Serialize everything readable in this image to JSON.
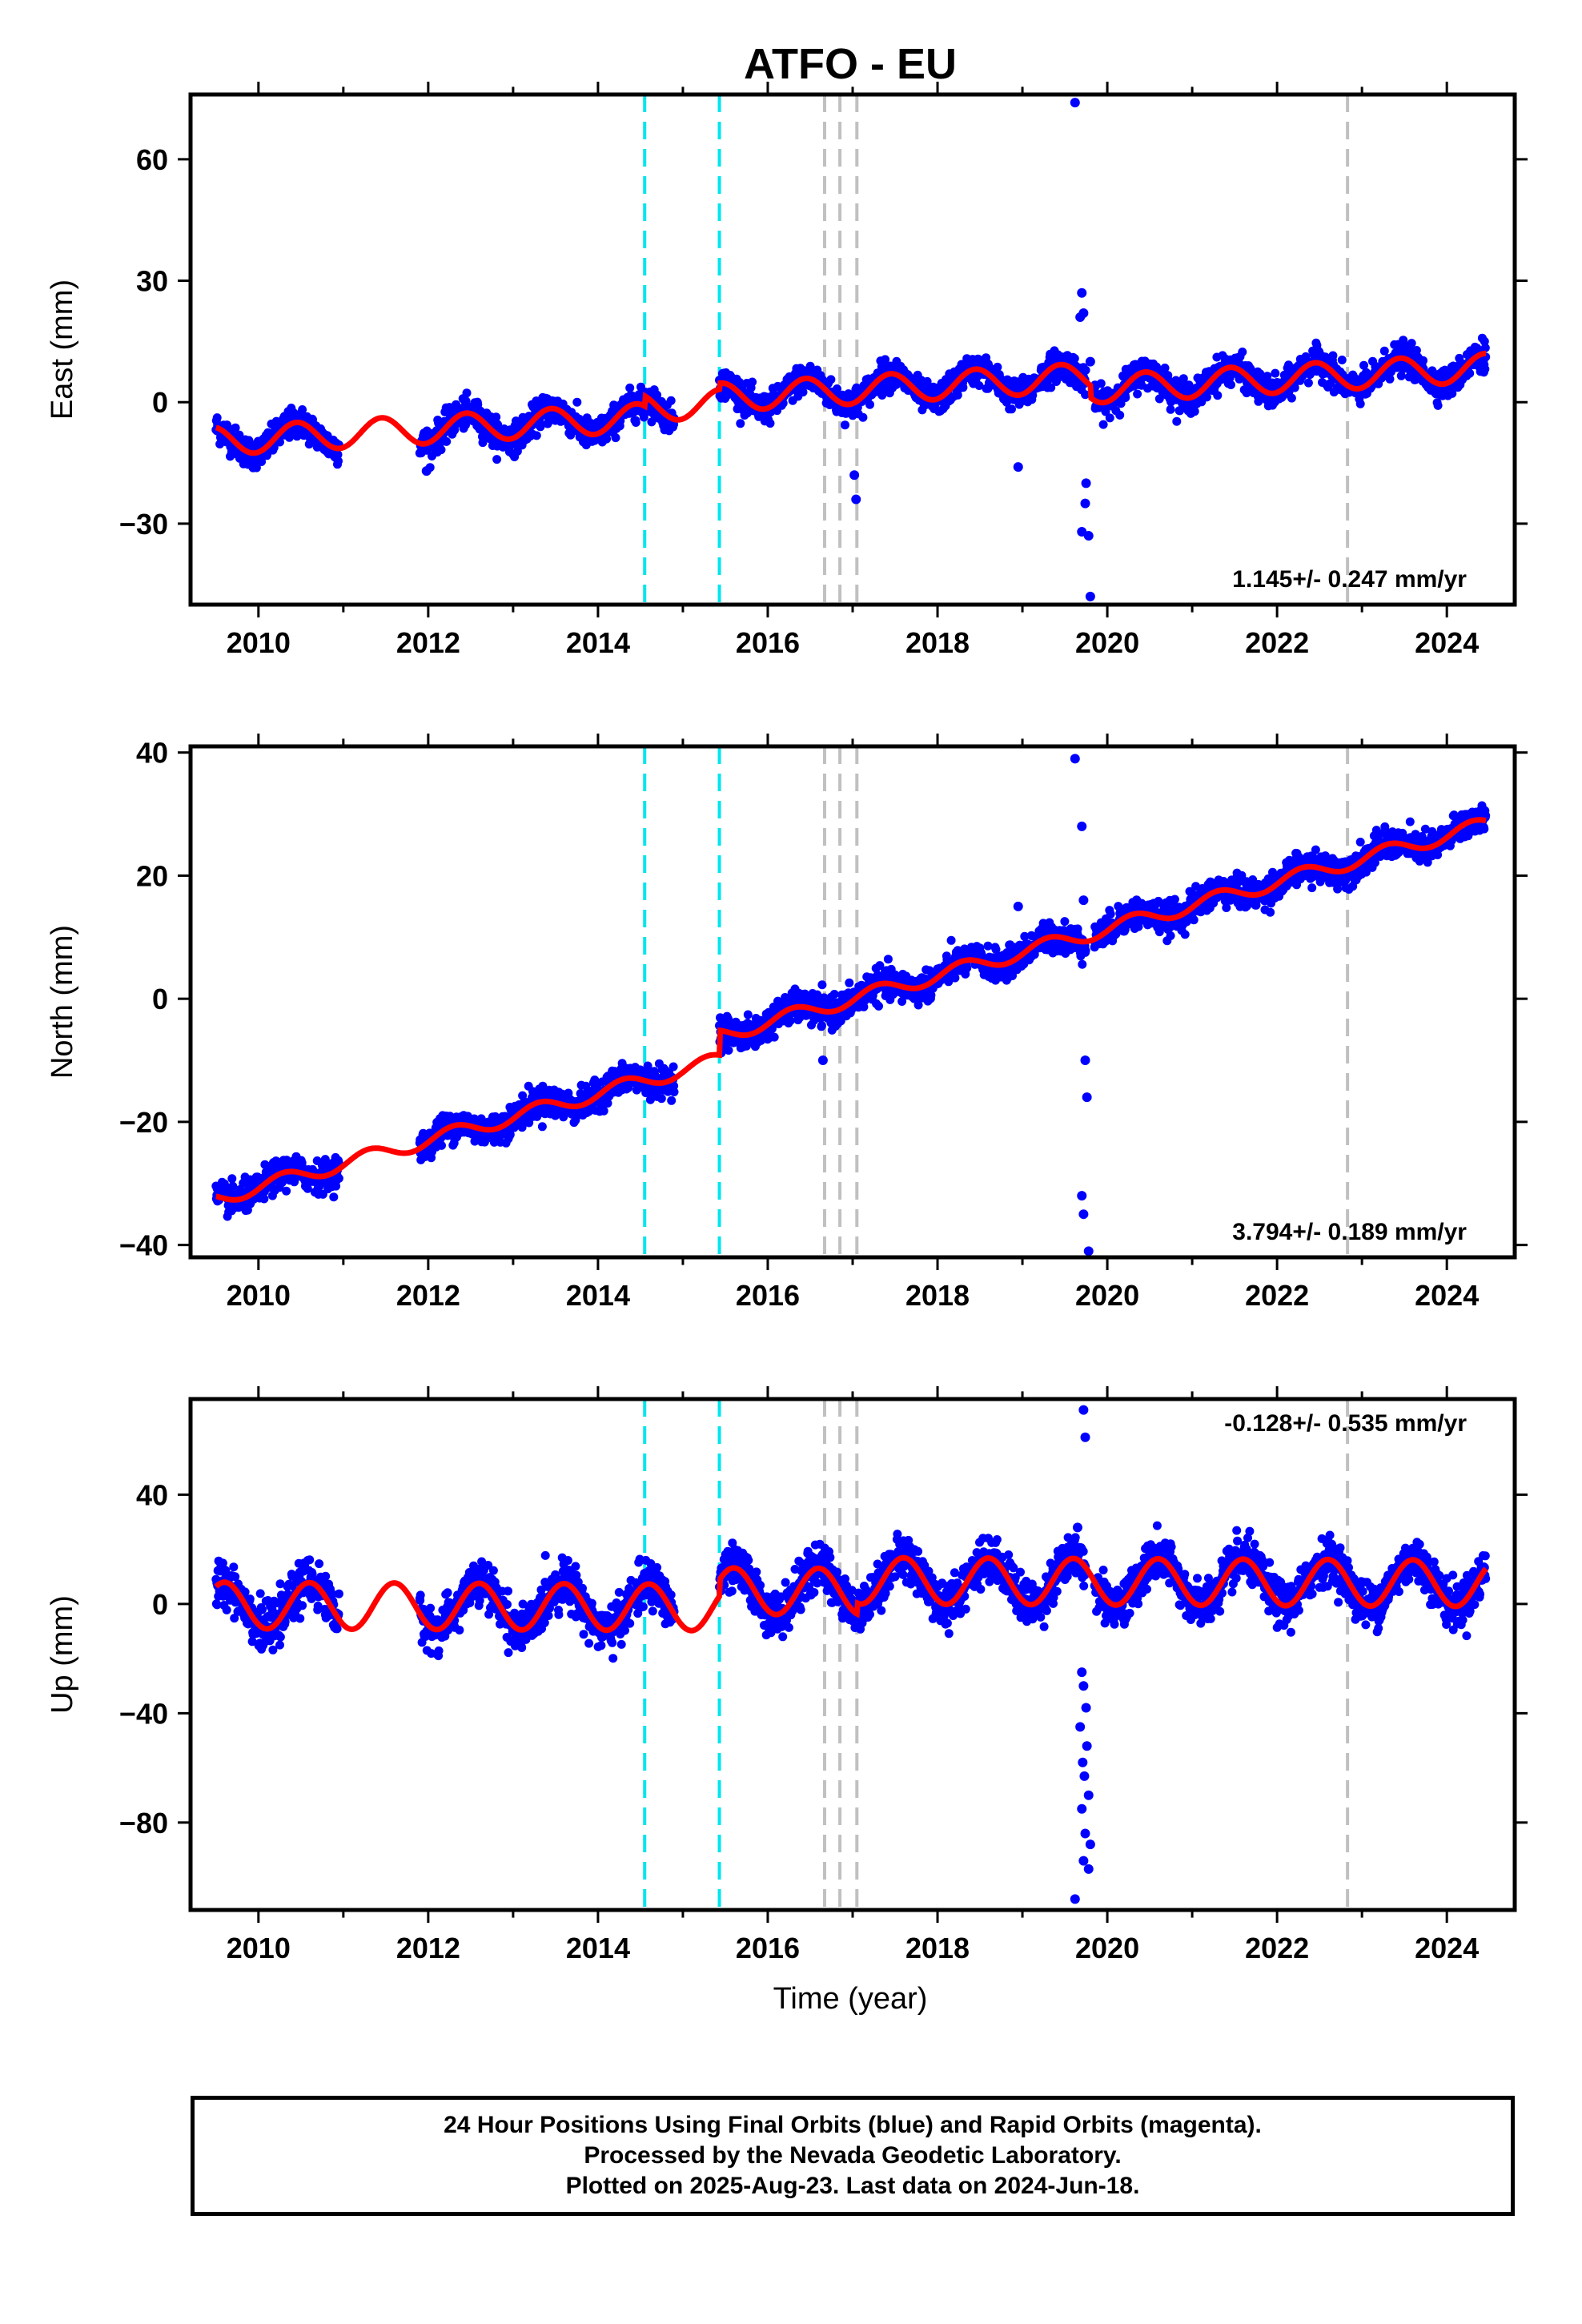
{
  "chart_data": {
    "type": "scatter",
    "title": "ATFO - EU",
    "xlabel": "Time (year)",
    "xlim": [
      2009.2,
      2024.8
    ],
    "xticks": [
      2010,
      2012,
      2014,
      2016,
      2018,
      2020,
      2022,
      2024
    ],
    "colors": {
      "points": "#0000ff",
      "model": "#ff0000",
      "equipment_change": "#00e5ee",
      "earthquake": "#c0c0c0"
    },
    "vertical_lines": {
      "cyan": [
        2014.55,
        2015.43
      ],
      "gray": [
        2016.67,
        2016.85,
        2017.05,
        2022.83
      ]
    },
    "data_coverage": [
      [
        2009.5,
        2010.95
      ],
      [
        2011.9,
        2014.9
      ],
      [
        2015.43,
        2018.35
      ],
      [
        2018.4,
        2019.75
      ],
      [
        2019.85,
        2024.46
      ]
    ],
    "panels": [
      {
        "id": "east",
        "ylabel": "East (mm)",
        "ylim": [
          -50,
          76
        ],
        "yticks": [
          60,
          30,
          0,
          -30
        ],
        "ytick_labels": [
          "60",
          "30",
          "0",
          "−30"
        ],
        "rate_text": "1.145+/- 0.247 mm/yr",
        "rate_position": "bottom-right",
        "trend": {
          "ref_year": 2017,
          "intercept": -1.0,
          "slope": 1.145,
          "amplitude": 3.5,
          "phase": 2016.45
        },
        "offsets": [
          {
            "year": 2014.55,
            "delta": 2.5
          },
          {
            "year": 2015.43,
            "delta": 1.5
          },
          {
            "year": 2019.8,
            "delta": -3.0
          }
        ],
        "scatter_sd": 1.8,
        "outliers": [
          {
            "x": 2019.62,
            "y": 74
          },
          {
            "x": 2019.7,
            "y": 27
          },
          {
            "x": 2019.72,
            "y": 22
          },
          {
            "x": 2019.68,
            "y": 21
          },
          {
            "x": 2019.75,
            "y": -20
          },
          {
            "x": 2019.74,
            "y": -25
          },
          {
            "x": 2019.7,
            "y": -32
          },
          {
            "x": 2019.78,
            "y": -33
          },
          {
            "x": 2019.8,
            "y": -48
          },
          {
            "x": 2017.02,
            "y": -18
          },
          {
            "x": 2017.04,
            "y": -24
          },
          {
            "x": 2011.98,
            "y": -17
          },
          {
            "x": 2018.95,
            "y": -16
          },
          {
            "x": 2019.8,
            "y": 10
          },
          {
            "x": 2019.72,
            "y": 5
          }
        ]
      },
      {
        "id": "north",
        "ylabel": "North (mm)",
        "ylim": [
          -42,
          41
        ],
        "yticks": [
          40,
          20,
          0,
          -20,
          -40
        ],
        "ytick_labels": [
          "40",
          "20",
          "0",
          "−20",
          "−40"
        ],
        "rate_text": "3.794+/- 0.189 mm/yr",
        "rate_position": "bottom-right",
        "trend": {
          "ref_year": 2017,
          "intercept": -4.0,
          "slope": 3.794,
          "amplitude": 1.2,
          "phase": 2016.3
        },
        "offsets": [
          {
            "year": 2015.43,
            "delta": 4.0
          }
        ],
        "scatter_sd": 1.2,
        "outliers": [
          {
            "x": 2019.62,
            "y": 39
          },
          {
            "x": 2019.7,
            "y": 28
          },
          {
            "x": 2019.72,
            "y": 16
          },
          {
            "x": 2019.74,
            "y": -10
          },
          {
            "x": 2019.76,
            "y": -16
          },
          {
            "x": 2019.7,
            "y": -32
          },
          {
            "x": 2019.72,
            "y": -35
          },
          {
            "x": 2019.78,
            "y": -41
          },
          {
            "x": 2018.95,
            "y": 15
          },
          {
            "x": 2016.65,
            "y": -10
          }
        ]
      },
      {
        "id": "up",
        "ylabel": "Up (mm)",
        "ylim": [
          -112,
          75
        ],
        "yticks": [
          40,
          0,
          -40,
          -80
        ],
        "ytick_labels": [
          "40",
          "0",
          "−40",
          "−80"
        ],
        "rate_text": "-0.128+/- 0.535 mm/yr",
        "rate_position": "top-right",
        "trend": {
          "ref_year": 2017,
          "intercept": -1.5,
          "slope": -0.128,
          "amplitude": 8.5,
          "phase": 2016.6
        },
        "offsets": [
          {
            "year": 2015.43,
            "delta": 6.0
          },
          {
            "year": 2017.05,
            "delta": 4.0
          }
        ],
        "scatter_sd": 4.0,
        "outliers": [
          {
            "x": 2019.72,
            "y": 71
          },
          {
            "x": 2019.74,
            "y": 61
          },
          {
            "x": 2019.65,
            "y": 28
          },
          {
            "x": 2019.7,
            "y": -25
          },
          {
            "x": 2019.72,
            "y": -30
          },
          {
            "x": 2019.75,
            "y": -38
          },
          {
            "x": 2019.68,
            "y": -45
          },
          {
            "x": 2019.76,
            "y": -52
          },
          {
            "x": 2019.71,
            "y": -58
          },
          {
            "x": 2019.73,
            "y": -63
          },
          {
            "x": 2019.78,
            "y": -70
          },
          {
            "x": 2019.7,
            "y": -75
          },
          {
            "x": 2019.74,
            "y": -84
          },
          {
            "x": 2019.8,
            "y": -88
          },
          {
            "x": 2019.72,
            "y": -94
          },
          {
            "x": 2019.78,
            "y": -97
          },
          {
            "x": 2019.62,
            "y": -108
          }
        ]
      }
    ],
    "footer_lines": [
      "24 Hour Positions Using Final Orbits (blue) and Rapid Orbits (magenta).",
      "Processed by the Nevada Geodetic Laboratory.",
      "Plotted on 2025-Aug-23. Last data on 2024-Jun-18."
    ]
  }
}
